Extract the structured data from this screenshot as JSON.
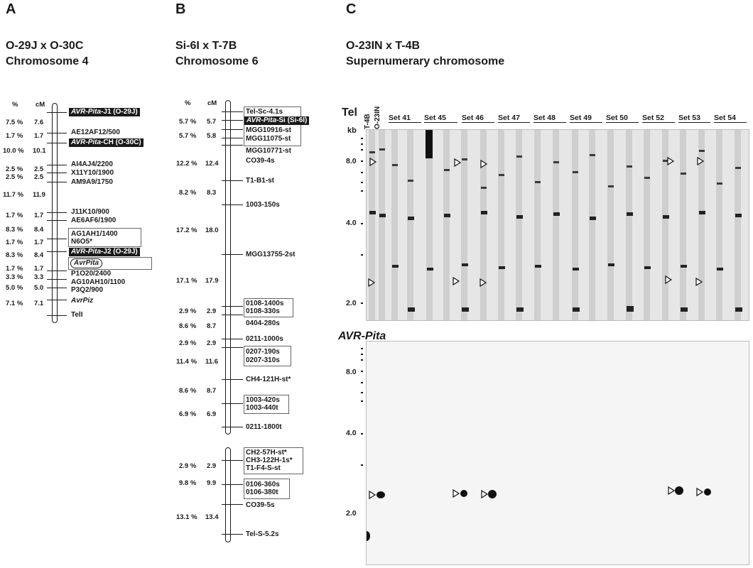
{
  "panels": {
    "A": {
      "letter": "A",
      "title_line1": "O-29J x O-30C",
      "title_line2": "Chromosome 4",
      "pct_header": "%",
      "cm_header": "cM",
      "intervals": [
        {
          "pct": "7.5 %",
          "cm": "7.6"
        },
        {
          "pct": "1.7 %",
          "cm": "1.7"
        },
        {
          "pct": "10.0 %",
          "cm": "10.1"
        },
        {
          "pct": "2.5 %",
          "cm": "2.5"
        },
        {
          "pct": "2.5 %",
          "cm": "2.5"
        },
        {
          "pct": "11.7 %",
          "cm": "11.9"
        },
        {
          "pct": "1.7 %",
          "cm": "1.7"
        },
        {
          "pct": "8.3 %",
          "cm": "8.4"
        },
        {
          "pct": "1.7 %",
          "cm": "1.7"
        },
        {
          "pct": "8.3 %",
          "cm": "8.4"
        },
        {
          "pct": "1.7 %",
          "cm": "1.7"
        },
        {
          "pct": "3.3 %",
          "cm": "3.3"
        },
        {
          "pct": "5.0 %",
          "cm": "5.0"
        },
        {
          "pct": "7.1 %",
          "cm": "7.1"
        }
      ],
      "markers": {
        "m0_italic": "AVR-Pita",
        "m0_rest": "-J1 (O-29J)",
        "m1": "AE12AF12/500",
        "m2_italic": "AVR-Pita",
        "m2_rest": "-CH (O-30C)",
        "m3": "AI4AJ4/2200",
        "m4": "X11Y10/1900",
        "m5": "AM9A9/1750",
        "m6": "J11K10/900",
        "m7": "AE6AF6/1900",
        "m8": "AG1AH1/1400",
        "m9": "N6O5*",
        "m10_italic": "AVR-Pita",
        "m10_rest": "-J2 (O-29J)",
        "m11": "AvrPita",
        "m12": "P1O20/2400",
        "m13": "AG10AH10/1100",
        "m14": "P3Q2/900",
        "m15": "AvrPiz",
        "m16": "TelI"
      }
    },
    "B": {
      "letter": "B",
      "title_line1": "Si-6I x T-7B",
      "title_line2": "Chromosome 6",
      "pct_header": "%",
      "cm_header": "cM",
      "intervals": [
        {
          "pct": "5.7 %",
          "cm": "5.7"
        },
        {
          "pct": "5.7 %",
          "cm": "5.8"
        },
        {
          "pct": "12.2 %",
          "cm": "12.4"
        },
        {
          "pct": "8.2 %",
          "cm": "8.3"
        },
        {
          "pct": "17.2 %",
          "cm": "18.0"
        },
        {
          "pct": "17.1 %",
          "cm": "17.9"
        },
        {
          "pct": "2.9 %",
          "cm": "2.9"
        },
        {
          "pct": "8.6 %",
          "cm": "8.7"
        },
        {
          "pct": "2.9 %",
          "cm": "2.9"
        },
        {
          "pct": "11.4 %",
          "cm": "11.6"
        },
        {
          "pct": "8.6 %",
          "cm": "8.7"
        },
        {
          "pct": "6.9 %",
          "cm": "6.9"
        },
        {
          "pct": "2.9 %",
          "cm": "2.9"
        },
        {
          "pct": "9.8 %",
          "cm": "9.9"
        },
        {
          "pct": "13.1 %",
          "cm": "13.4"
        }
      ],
      "markers": {
        "m0": "Tel-Sc-4.1s",
        "m1_italic": "AVR-Pita",
        "m1_rest": "-Si (Si-6I)",
        "m2": "MGG10916-st",
        "m3": "MGG11075-st",
        "m4": "MGG10771-st",
        "m5": "CO39-4s",
        "m6": "T1-B1-st",
        "m7": "1003-150s",
        "m8": "MGG13755-2st",
        "m9": "0108-1400s",
        "m10": "0108-330s",
        "m11": "0404-280s",
        "m12": "0211-1000s",
        "m13": "0207-190s",
        "m14": "0207-310s",
        "m15": "CH4-121H-st*",
        "m16": "1003-420s",
        "m17": "1003-440t",
        "m18": "0211-1800t",
        "m19": "CH2-57H-st*",
        "m20": "CH3-122H-1s*",
        "m21": "T1-F4-S-st",
        "m22": "0106-360s",
        "m23": "0106-380t",
        "m24": "CO39-5s",
        "m25": "Tel-S-5.2s"
      }
    },
    "C": {
      "letter": "C",
      "title_line1": "O-23IN x T-4B",
      "title_line2": "Supernumerary chromosome",
      "probe_top": "Tel",
      "probe_bottom": "AVR-Pita",
      "parent1": "T-4B",
      "parent2": "O-23IN",
      "kb_label": "kb",
      "sets": [
        "Set 41",
        "Set 45",
        "Set 46",
        "Set 47",
        "Set 48",
        "Set 49",
        "Set 50",
        "Set 52",
        "Set 53",
        "Set 54"
      ],
      "top_ticks": [
        "8.0",
        "4.0",
        "2.0"
      ],
      "bottom_ticks": [
        "8.0",
        "4.0",
        "2.0"
      ]
    }
  }
}
